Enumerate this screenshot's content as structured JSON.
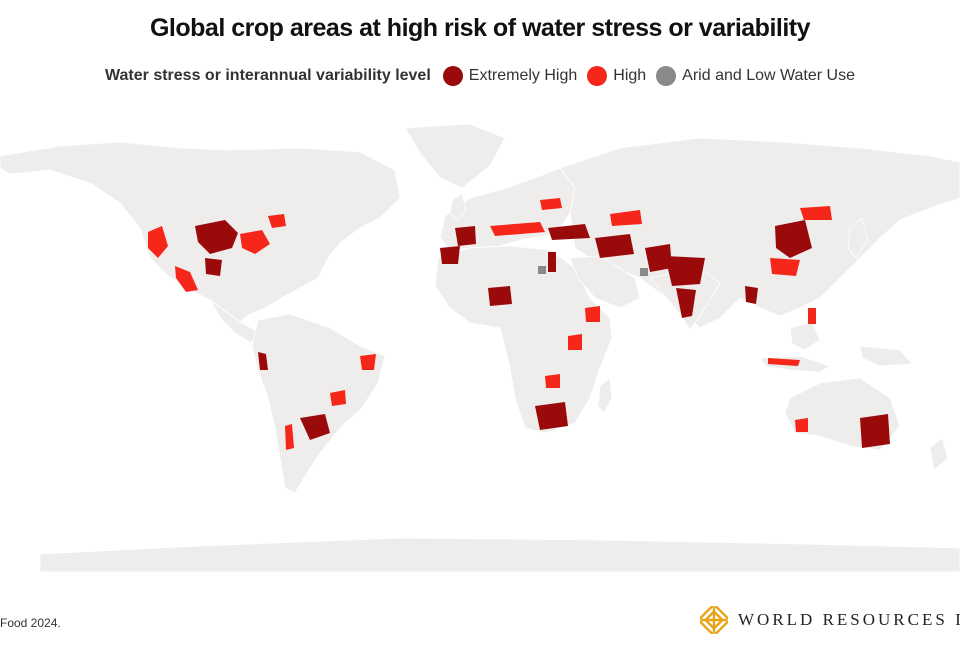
{
  "title": "Global crop areas at high risk of water stress or variability",
  "legend": {
    "title": "Water stress or interannual variability level",
    "items": [
      {
        "label": "Extremely High",
        "color": "#9b0a0a"
      },
      {
        "label": "High",
        "color": "#f5261a"
      },
      {
        "label": "Arid and Low Water Use",
        "color": "#8a8a8a"
      }
    ]
  },
  "colors": {
    "land": "#eeedeb",
    "ocean": "#ffffff"
  },
  "source": "Food 2024.",
  "logo": {
    "text": "WORLD RESOURCES IN",
    "icon": "wri-diamond-logo-icon",
    "color": "#e8a317"
  }
}
